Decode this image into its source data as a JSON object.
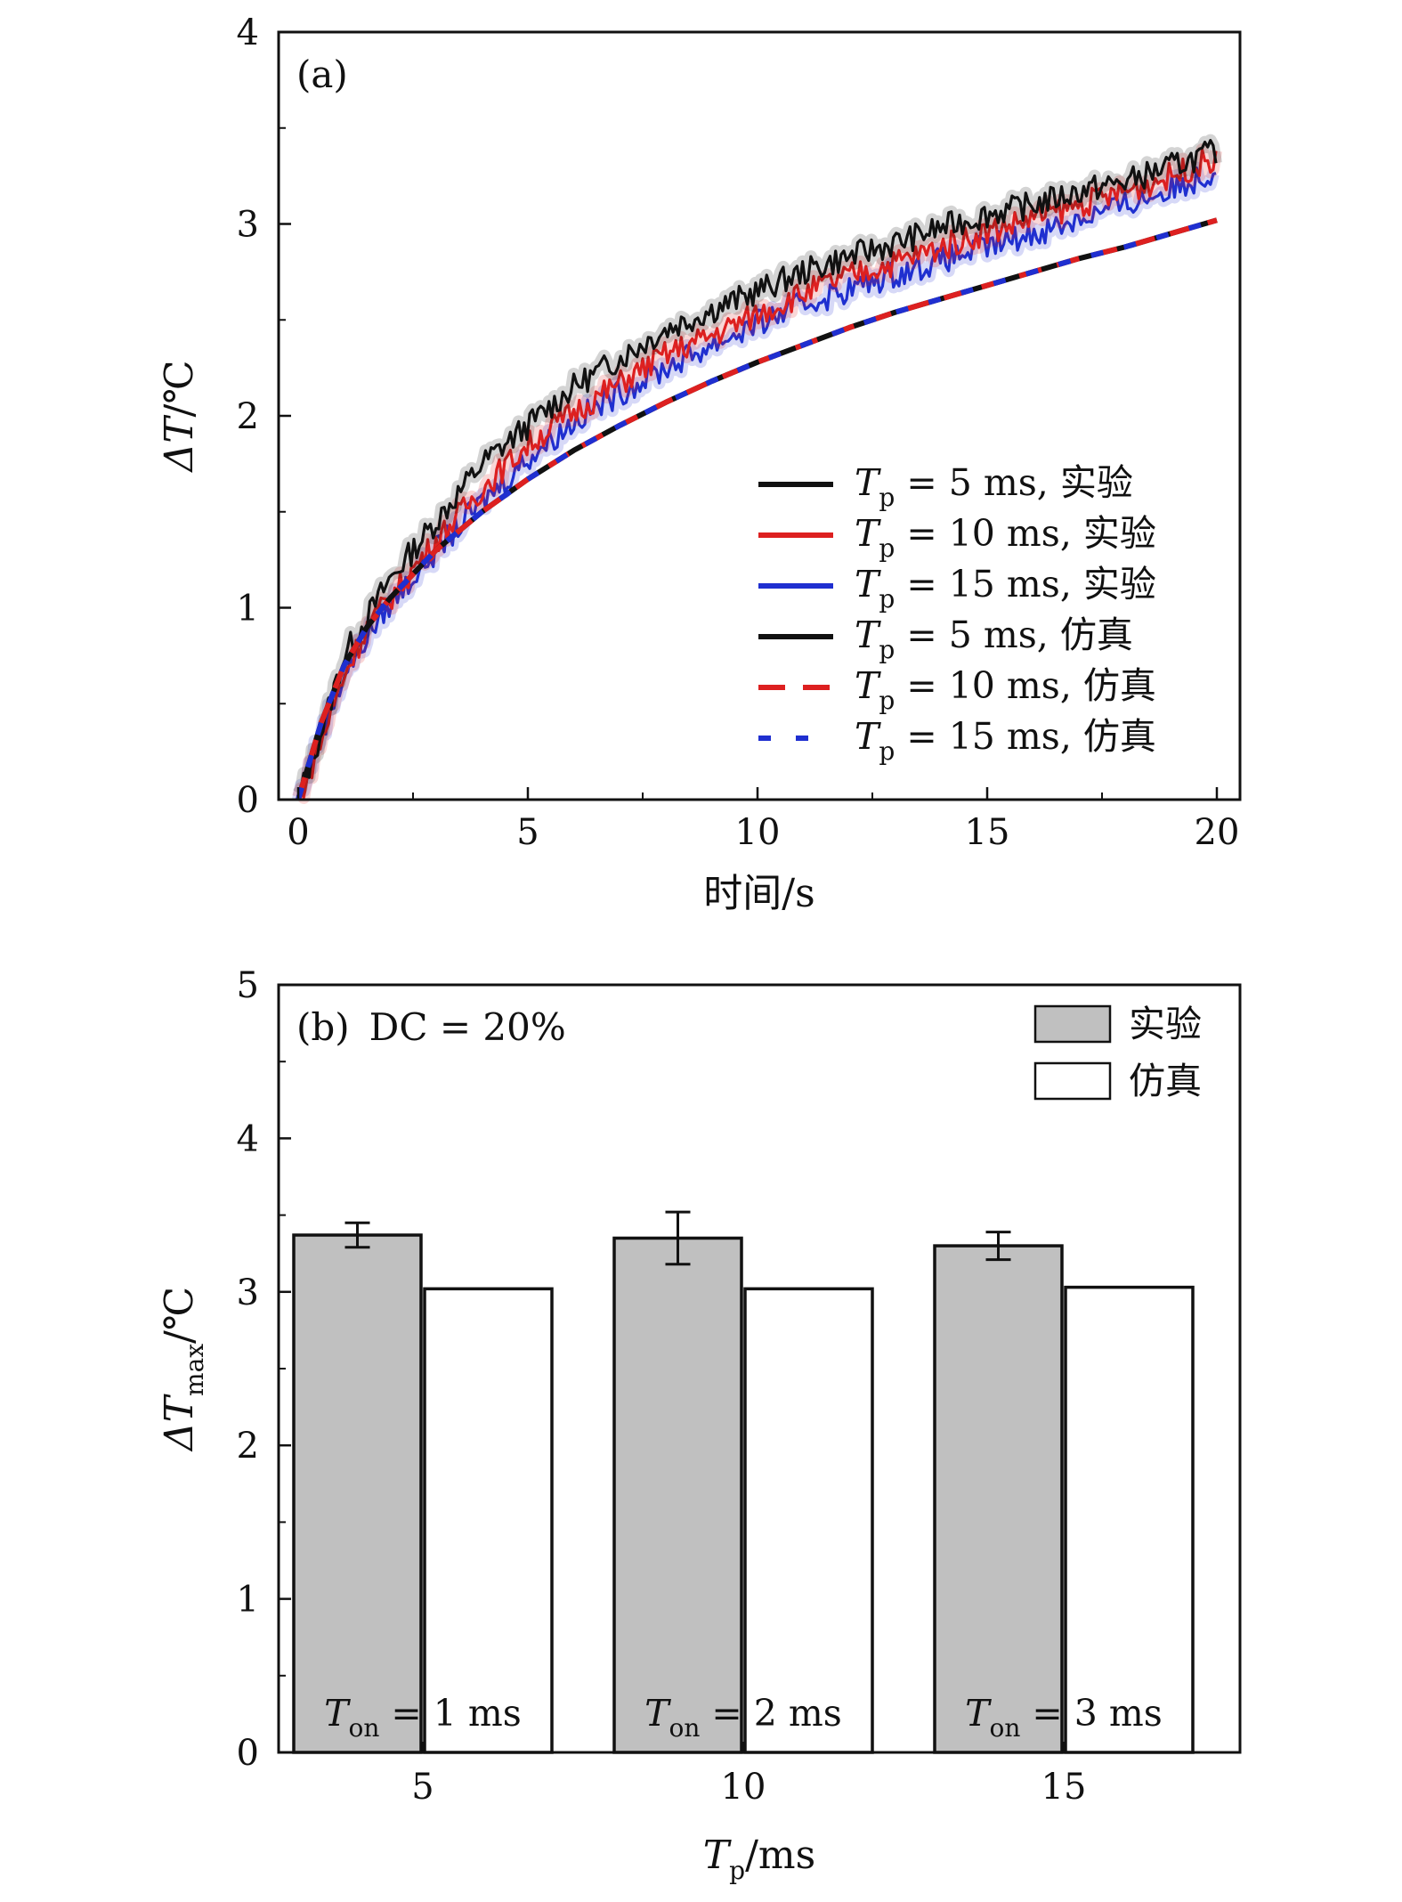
{
  "chart_data": [
    {
      "type": "line",
      "panel_label": "(a)",
      "xlabel": "时间/s",
      "ylabel": {
        "main": "ΔT",
        "unit": "/℃"
      },
      "xlim": [
        0,
        20
      ],
      "ylim": [
        0,
        4
      ],
      "xticks": [
        "0",
        "5",
        "10",
        "15",
        "20"
      ],
      "yticks": [
        "0",
        "1",
        "2",
        "3",
        "4"
      ],
      "grid": false,
      "legend_position": "bottom-right",
      "series": [
        {
          "name": "Tp = 5 ms, 实验",
          "label": {
            "var": "T",
            "sub": "p",
            "rest": " = 5 ms, 实验"
          },
          "color": "#111111",
          "style": "solid",
          "kind": "experiment",
          "x": [
            0,
            0.5,
            1,
            1.5,
            2,
            3,
            4,
            5,
            6,
            7,
            8,
            9,
            10,
            11,
            12,
            13,
            14,
            15,
            16,
            17,
            18,
            19,
            20
          ],
          "y": [
            0,
            0.35,
            0.75,
            0.95,
            1.15,
            1.45,
            1.75,
            1.95,
            2.15,
            2.3,
            2.45,
            2.55,
            2.65,
            2.75,
            2.83,
            2.9,
            2.98,
            3.05,
            3.1,
            3.17,
            3.22,
            3.3,
            3.38
          ]
        },
        {
          "name": "Tp = 10 ms, 实验",
          "label": {
            "var": "T",
            "sub": "p",
            "rest": " = 10 ms, 实验"
          },
          "color": "#dd2020",
          "style": "solid",
          "kind": "experiment",
          "x": [
            0,
            0.5,
            1,
            1.5,
            2,
            3,
            4,
            5,
            6,
            7,
            8,
            9,
            10,
            11,
            12,
            13,
            14,
            15,
            16,
            17,
            18,
            19,
            20
          ],
          "y": [
            0,
            0.3,
            0.65,
            0.9,
            1.05,
            1.35,
            1.62,
            1.85,
            2.02,
            2.17,
            2.32,
            2.42,
            2.53,
            2.64,
            2.73,
            2.8,
            2.88,
            2.96,
            3.03,
            3.1,
            3.17,
            3.25,
            3.35
          ]
        },
        {
          "name": "Tp = 15 ms, 实验",
          "label": {
            "var": "T",
            "sub": "p",
            "rest": " = 15 ms, 实验"
          },
          "color": "#1f2fd0",
          "style": "solid",
          "kind": "experiment",
          "x": [
            0,
            0.5,
            1,
            1.5,
            2,
            3,
            4,
            5,
            6,
            7,
            8,
            9,
            10,
            11,
            12,
            13,
            14,
            15,
            16,
            17,
            18,
            19,
            20
          ],
          "y": [
            0,
            0.35,
            0.65,
            0.85,
            1.02,
            1.3,
            1.55,
            1.78,
            1.97,
            2.12,
            2.25,
            2.37,
            2.48,
            2.58,
            2.66,
            2.74,
            2.81,
            2.88,
            2.95,
            3.03,
            3.1,
            3.18,
            3.28
          ]
        },
        {
          "name": "Tp = 5 ms, 仿真",
          "label": {
            "var": "T",
            "sub": "p",
            "rest": " = 5 ms, 仿真"
          },
          "color": "#111111",
          "style": "solid",
          "kind": "simulation",
          "x": [
            0,
            0.5,
            1,
            1.5,
            2,
            3,
            4,
            5,
            6,
            7,
            8,
            9,
            10,
            11,
            12,
            13,
            14,
            15,
            16,
            17,
            18,
            19,
            20
          ],
          "y": [
            0,
            0.4,
            0.7,
            0.9,
            1.05,
            1.3,
            1.5,
            1.67,
            1.82,
            1.95,
            2.07,
            2.18,
            2.28,
            2.37,
            2.46,
            2.54,
            2.61,
            2.68,
            2.75,
            2.82,
            2.88,
            2.95,
            3.02
          ]
        },
        {
          "name": "Tp = 10 ms, 仿真",
          "label": {
            "var": "T",
            "sub": "p",
            "rest": " = 10 ms, 仿真"
          },
          "color": "#dd2020",
          "style": "dashed",
          "kind": "simulation",
          "x": [
            0,
            0.5,
            1,
            1.5,
            2,
            3,
            4,
            5,
            6,
            7,
            8,
            9,
            10,
            11,
            12,
            13,
            14,
            15,
            16,
            17,
            18,
            19,
            20
          ],
          "y": [
            0,
            0.4,
            0.7,
            0.9,
            1.05,
            1.3,
            1.5,
            1.67,
            1.82,
            1.95,
            2.07,
            2.18,
            2.28,
            2.37,
            2.46,
            2.54,
            2.61,
            2.68,
            2.75,
            2.82,
            2.88,
            2.95,
            3.02
          ]
        },
        {
          "name": "Tp = 15 ms, 仿真",
          "label": {
            "var": "T",
            "sub": "p",
            "rest": " = 15 ms, 仿真"
          },
          "color": "#1f2fd0",
          "style": "dashed",
          "kind": "simulation",
          "x": [
            0,
            0.5,
            1,
            1.5,
            2,
            3,
            4,
            5,
            6,
            7,
            8,
            9,
            10,
            11,
            12,
            13,
            14,
            15,
            16,
            17,
            18,
            19,
            20
          ],
          "y": [
            0,
            0.4,
            0.7,
            0.9,
            1.05,
            1.3,
            1.5,
            1.67,
            1.82,
            1.95,
            2.07,
            2.18,
            2.28,
            2.37,
            2.46,
            2.54,
            2.61,
            2.68,
            2.75,
            2.82,
            2.88,
            2.95,
            3.02
          ]
        }
      ]
    },
    {
      "type": "bar",
      "panel_label": "(b)",
      "annotation": "DC = 20%",
      "xlabel": {
        "main": "T",
        "sub": "p",
        "unit": "/ms"
      },
      "ylabel": {
        "main": "ΔT",
        "sub": "max",
        "unit": "/℃"
      },
      "ylim": [
        0,
        5
      ],
      "yticks": [
        "0",
        "1",
        "2",
        "3",
        "4",
        "5"
      ],
      "categories": [
        "5",
        "10",
        "15"
      ],
      "category_notes": [
        {
          "var": "T",
          "sub": "on",
          "rest": " = 1 ms"
        },
        {
          "var": "T",
          "sub": "on",
          "rest": " = 2 ms"
        },
        {
          "var": "T",
          "sub": "on",
          "rest": " = 3 ms"
        }
      ],
      "legend_position": "top-right",
      "series": [
        {
          "name": "实验",
          "color": "#c0c0c0",
          "values": [
            3.37,
            3.35,
            3.3
          ],
          "errors": [
            0.08,
            0.17,
            0.09
          ]
        },
        {
          "name": "仿真",
          "color": "#ffffff",
          "values": [
            3.02,
            3.02,
            3.03
          ]
        }
      ]
    }
  ]
}
